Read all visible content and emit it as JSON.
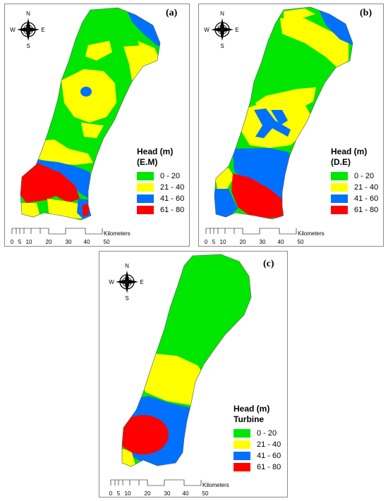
{
  "colors": {
    "green": "#00e600",
    "yellow": "#ffff00",
    "blue": "#0070ff",
    "red": "#ff0000"
  },
  "compass": {
    "n": "N",
    "s": "S",
    "e": "E",
    "w": "W"
  },
  "scale_bar": {
    "ticks": [
      "0",
      "5",
      "10",
      "20",
      "30",
      "40",
      "50"
    ],
    "unit": "Kilometers"
  },
  "panels": [
    {
      "tag": "(a)",
      "legend": {
        "title": "Head (m)",
        "subtitle": "(E.M)",
        "classes": [
          {
            "label": "0 - 20",
            "color": "#00e600"
          },
          {
            "label": "21 - 40",
            "color": "#ffff00"
          },
          {
            "label": "41 - 60",
            "color": "#0070ff"
          },
          {
            "label": "61 - 80",
            "color": "#ff0000"
          }
        ]
      }
    },
    {
      "tag": "(b)",
      "legend": {
        "title": "Head (m)",
        "subtitle": "(D.E)",
        "classes": [
          {
            "label": "0 - 20",
            "color": "#00e600"
          },
          {
            "label": "21 - 40",
            "color": "#ffff00"
          },
          {
            "label": "41 - 60",
            "color": "#0070ff"
          },
          {
            "label": "61 - 80",
            "color": "#ff0000"
          }
        ]
      }
    },
    {
      "tag": "(c)",
      "legend": {
        "title": "Head (m)",
        "subtitle": "Turbine",
        "classes": [
          {
            "label": "0 - 20",
            "color": "#00e600"
          },
          {
            "label": "21 - 40",
            "color": "#ffff00"
          },
          {
            "label": "41 - 60",
            "color": "#0070ff"
          },
          {
            "label": "61 - 80",
            "color": "#ff0000"
          }
        ]
      }
    }
  ]
}
